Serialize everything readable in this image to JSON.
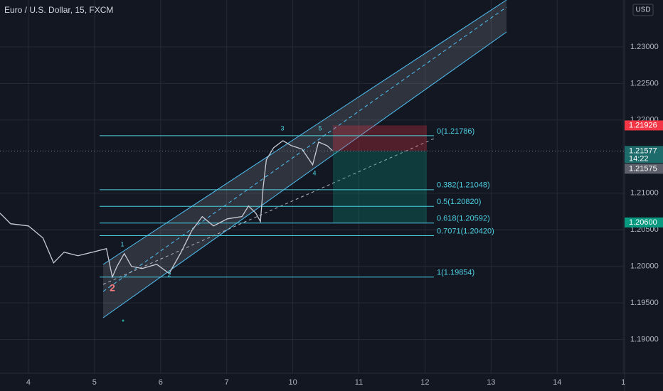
{
  "chart_data": {
    "type": "line",
    "title": "Euro / U.S. Dollar, 15, FXCM",
    "currency": "USD",
    "x": [
      -0.43,
      -0.27,
      0,
      0.22,
      0.38,
      0.54,
      0.75,
      0.97,
      1.18,
      1.27,
      1.34,
      1.45,
      1.56,
      1.72,
      1.94,
      2.13,
      2.31,
      2.47,
      2.63,
      2.8,
      3.01,
      3.23,
      3.33,
      3.44,
      3.51,
      3.55,
      3.6,
      3.71,
      3.85,
      3.98,
      4.14,
      4.3,
      4.39,
      4.52,
      4.6
    ],
    "series": [
      {
        "color": "#c8ccd6",
        "values": [
          1.20728,
          1.20583,
          1.20553,
          1.20388,
          1.20049,
          1.20194,
          1.20146,
          1.20194,
          1.20243,
          1.19854,
          1.2,
          1.20175,
          1.2,
          1.19971,
          1.20029,
          1.19903,
          1.20194,
          1.20485,
          1.2068,
          1.20553,
          1.2065,
          1.2068,
          1.20825,
          1.20728,
          1.20612,
          1.21068,
          1.21456,
          1.21621,
          1.21718,
          1.2165,
          1.21602,
          1.21388,
          1.21699,
          1.2165,
          1.21583
        ]
      }
    ],
    "xlim": [
      -0.43,
      9.02
    ],
    "xticks": [
      {
        "value": 0,
        "label": "4"
      },
      {
        "value": 1,
        "label": "5"
      },
      {
        "value": 2,
        "label": "6"
      },
      {
        "value": 3,
        "label": "7"
      },
      {
        "value": 4,
        "label": "10"
      },
      {
        "value": 5,
        "label": "11"
      },
      {
        "value": 6,
        "label": "12"
      },
      {
        "value": 7,
        "label": "13"
      },
      {
        "value": 8,
        "label": "14"
      },
      {
        "value": 9,
        "label": "1"
      }
    ],
    "ylim": [
      1.1854,
      1.2364
    ],
    "yticks": [
      {
        "value": 1.19,
        "label": "1.19000"
      },
      {
        "value": 1.195,
        "label": "1.19500"
      },
      {
        "value": 1.2,
        "label": "1.20000"
      },
      {
        "value": 1.205,
        "label": "1.20500"
      },
      {
        "value": 1.21,
        "label": "1.21000"
      },
      {
        "value": 1.22,
        "label": "1.22000"
      },
      {
        "value": 1.225,
        "label": "1.22500"
      },
      {
        "value": 1.23,
        "label": "1.23000"
      }
    ],
    "grid": true,
    "fib_levels": [
      {
        "value": 1.21786,
        "label": "0(1.21786)"
      },
      {
        "value": 1.21048,
        "label": "0.382(1.21048)"
      },
      {
        "value": 1.2082,
        "label": "0.5(1.20820)"
      },
      {
        "value": 1.20592,
        "label": "0.618(1.20592)"
      },
      {
        "value": 1.2042,
        "label": "0.7071(1.20420)"
      },
      {
        "value": 1.19854,
        "label": "1(1.19854)"
      }
    ],
    "price_badges": [
      {
        "value": 1.21926,
        "label": "1.21926",
        "color": "#f23645"
      },
      {
        "value": 1.21577,
        "label": "1.21577",
        "sub": "14:22",
        "color": "#1e6b6b"
      },
      {
        "value": 1.21575,
        "label": "1.21575",
        "color": "#5d606b"
      },
      {
        "value": 1.206,
        "label": "1.20600",
        "color": "#089981"
      }
    ],
    "wave_labels": [
      "1",
      "2",
      "3",
      "4",
      "5",
      "2"
    ]
  }
}
